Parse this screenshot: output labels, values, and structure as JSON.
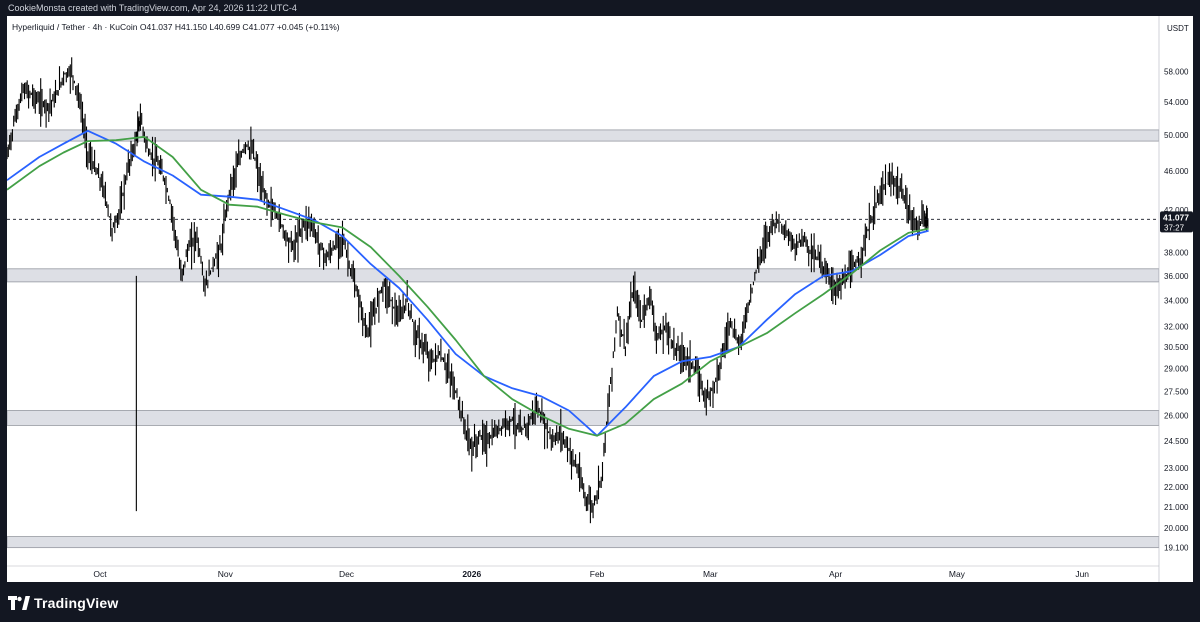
{
  "header": {
    "credit": "CookieMonsta created with TradingView.com, Apr 24, 2026 11:22 UTC-4",
    "ohlc": "Hyperliquid / Tether · 4h · KuCoin  O41.037  H41.150  L40.699  C41.077  +0.045 (+0.11%)",
    "unit": "USDT"
  },
  "price_tag": {
    "price": "41.077",
    "countdown": "37:27"
  },
  "brand": {
    "name": "TradingView",
    "icon": "tradingview-logo-icon"
  },
  "colors": {
    "ma_fast": "#2962ff",
    "ma_slow": "#43a047",
    "zone": "#d1d4dc",
    "candle": "#000000"
  },
  "chart_data": {
    "type": "line",
    "title": "",
    "symbol": "Hyperliquid / Tether",
    "interval": "4h",
    "exchange": "KuCoin",
    "ohlc": {
      "open": 41.037,
      "high": 41.15,
      "low": 40.699,
      "close": 41.077,
      "change": 0.045,
      "change_pct": 0.11
    },
    "y_scale": "log",
    "ylim": [
      18.3,
      66.0
    ],
    "y_ticks": [
      "58.000",
      "54.000",
      "50.000",
      "46.000",
      "42.000",
      "38.000",
      "36.000",
      "34.000",
      "32.000",
      "30.500",
      "29.000",
      "27.500",
      "26.000",
      "24.500",
      "23.000",
      "22.000",
      "21.000",
      "20.000",
      "19.100"
    ],
    "x_ticks": [
      "Oct",
      "Nov",
      "Dec",
      "2026",
      "Feb",
      "Mar",
      "Apr",
      "May",
      "Jun"
    ],
    "xlim": [
      "2025-09-08",
      "2026-06-20"
    ],
    "last_price": 41.077,
    "zones": [
      {
        "low": 49.3,
        "high": 50.6
      },
      {
        "low": 35.5,
        "high": 36.6
      },
      {
        "low": 25.4,
        "high": 26.3
      },
      {
        "low": 19.1,
        "high": 19.6
      }
    ],
    "series": [
      {
        "style": "candles",
        "points": [
          [
            "2025-09-08",
            47.5
          ],
          [
            "2025-09-10",
            52.0
          ],
          [
            "2025-09-12",
            55.5
          ],
          [
            "2025-09-14",
            55.0
          ],
          [
            "2025-09-16",
            54.0
          ],
          [
            "2025-09-18",
            53.5
          ],
          [
            "2025-09-20",
            54.5
          ],
          [
            "2025-09-22",
            57.5
          ],
          [
            "2025-09-24",
            58.0
          ],
          [
            "2025-09-26",
            54.0
          ],
          [
            "2025-09-28",
            48.0
          ],
          [
            "2025-09-30",
            46.0
          ],
          [
            "2025-10-02",
            44.0
          ],
          [
            "2025-10-04",
            40.0
          ],
          [
            "2025-10-06",
            42.0
          ],
          [
            "2025-10-08",
            46.5
          ],
          [
            "2025-10-10",
            49.5
          ],
          [
            "2025-10-11",
            52.0
          ],
          [
            "2025-10-13",
            48.0
          ],
          [
            "2025-10-15",
            47.0
          ],
          [
            "2025-10-17",
            45.0
          ],
          [
            "2025-10-19",
            41.5
          ],
          [
            "2025-10-21",
            36.0
          ],
          [
            "2025-10-23",
            38.5
          ],
          [
            "2025-10-25",
            39.5
          ],
          [
            "2025-10-27",
            35.0
          ],
          [
            "2025-10-29",
            37.0
          ],
          [
            "2025-10-31",
            38.5
          ],
          [
            "2025-11-02",
            44.0
          ],
          [
            "2025-11-04",
            46.5
          ],
          [
            "2025-11-06",
            49.0
          ],
          [
            "2025-11-08",
            48.0
          ],
          [
            "2025-11-10",
            44.0
          ],
          [
            "2025-11-12",
            42.5
          ],
          [
            "2025-11-14",
            41.5
          ],
          [
            "2025-11-16",
            39.5
          ],
          [
            "2025-11-18",
            38.5
          ],
          [
            "2025-11-20",
            40.5
          ],
          [
            "2025-11-22",
            41.0
          ],
          [
            "2025-11-24",
            39.0
          ],
          [
            "2025-11-26",
            37.5
          ],
          [
            "2025-11-28",
            38.5
          ],
          [
            "2025-11-30",
            39.5
          ],
          [
            "2025-12-02",
            36.5
          ],
          [
            "2025-12-04",
            34.0
          ],
          [
            "2025-12-06",
            31.5
          ],
          [
            "2025-12-08",
            33.0
          ],
          [
            "2025-12-10",
            35.5
          ],
          [
            "2025-12-12",
            34.0
          ],
          [
            "2025-12-14",
            32.5
          ],
          [
            "2025-12-16",
            34.0
          ],
          [
            "2025-12-18",
            31.5
          ],
          [
            "2025-12-20",
            30.5
          ],
          [
            "2025-12-22",
            29.5
          ],
          [
            "2025-12-24",
            30.0
          ],
          [
            "2025-12-26",
            29.0
          ],
          [
            "2025-12-28",
            27.5
          ],
          [
            "2025-12-30",
            25.5
          ],
          [
            "2026-01-01",
            24.0
          ],
          [
            "2026-01-03",
            24.8
          ],
          [
            "2026-01-05",
            24.5
          ],
          [
            "2026-01-07",
            25.0
          ],
          [
            "2026-01-09",
            25.5
          ],
          [
            "2026-01-11",
            25.8
          ],
          [
            "2026-01-13",
            25.0
          ],
          [
            "2026-01-15",
            25.5
          ],
          [
            "2026-01-17",
            26.5
          ],
          [
            "2026-01-19",
            25.5
          ],
          [
            "2026-01-21",
            24.5
          ],
          [
            "2026-01-23",
            25.0
          ],
          [
            "2026-01-25",
            24.0
          ],
          [
            "2026-01-27",
            23.0
          ],
          [
            "2026-01-29",
            21.5
          ],
          [
            "2026-01-31",
            21.0
          ],
          [
            "2026-02-02",
            22.5
          ],
          [
            "2026-02-04",
            27.0
          ],
          [
            "2026-02-06",
            33.0
          ],
          [
            "2026-02-08",
            30.5
          ],
          [
            "2026-02-10",
            35.0
          ],
          [
            "2026-02-12",
            32.5
          ],
          [
            "2026-02-14",
            34.5
          ],
          [
            "2026-02-16",
            31.0
          ],
          [
            "2026-02-18",
            32.0
          ],
          [
            "2026-02-20",
            30.5
          ],
          [
            "2026-02-22",
            30.0
          ],
          [
            "2026-02-24",
            29.5
          ],
          [
            "2026-02-26",
            28.5
          ],
          [
            "2026-02-28",
            27.0
          ],
          [
            "2026-03-02",
            28.0
          ],
          [
            "2026-03-04",
            30.0
          ],
          [
            "2026-03-06",
            32.5
          ],
          [
            "2026-03-08",
            30.5
          ],
          [
            "2026-03-10",
            33.0
          ],
          [
            "2026-03-12",
            36.0
          ],
          [
            "2026-03-14",
            38.5
          ],
          [
            "2026-03-16",
            40.5
          ],
          [
            "2026-03-18",
            41.0
          ],
          [
            "2026-03-20",
            39.5
          ],
          [
            "2026-03-22",
            38.5
          ],
          [
            "2026-03-24",
            39.5
          ],
          [
            "2026-03-26",
            38.0
          ],
          [
            "2026-03-28",
            37.5
          ],
          [
            "2026-03-30",
            36.0
          ],
          [
            "2026-04-01",
            35.0
          ],
          [
            "2026-04-03",
            35.5
          ],
          [
            "2026-04-05",
            36.5
          ],
          [
            "2026-04-07",
            37.5
          ],
          [
            "2026-04-09",
            40.0
          ],
          [
            "2026-04-11",
            42.5
          ],
          [
            "2026-04-13",
            44.5
          ],
          [
            "2026-04-15",
            45.0
          ],
          [
            "2026-04-17",
            44.0
          ],
          [
            "2026-04-19",
            42.0
          ],
          [
            "2026-04-21",
            40.5
          ],
          [
            "2026-04-23",
            41.0
          ],
          [
            "2026-04-24",
            41.077
          ]
        ]
      },
      {
        "style": "moving-average-blue",
        "points": [
          [
            "2025-09-08",
            45.0
          ],
          [
            "2025-09-16",
            47.5
          ],
          [
            "2025-09-22",
            49.0
          ],
          [
            "2025-09-28",
            50.5
          ],
          [
            "2025-10-05",
            49.0
          ],
          [
            "2025-10-12",
            47.0
          ],
          [
            "2025-10-19",
            45.5
          ],
          [
            "2025-10-26",
            43.5
          ],
          [
            "2025-11-02",
            43.3
          ],
          [
            "2025-11-09",
            43.0
          ],
          [
            "2025-11-16",
            42.0
          ],
          [
            "2025-11-23",
            41.0
          ],
          [
            "2025-11-30",
            39.5
          ],
          [
            "2025-12-07",
            37.0
          ],
          [
            "2025-12-14",
            35.0
          ],
          [
            "2025-12-21",
            32.5
          ],
          [
            "2025-12-28",
            30.0
          ],
          [
            "2026-01-04",
            28.5
          ],
          [
            "2026-01-11",
            27.7
          ],
          [
            "2026-01-18",
            27.2
          ],
          [
            "2026-01-25",
            26.3
          ],
          [
            "2026-02-01",
            24.8
          ],
          [
            "2026-02-08",
            26.5
          ],
          [
            "2026-02-15",
            28.5
          ],
          [
            "2026-02-22",
            29.5
          ],
          [
            "2026-03-01",
            29.8
          ],
          [
            "2026-03-08",
            30.5
          ],
          [
            "2026-03-15",
            32.5
          ],
          [
            "2026-03-22",
            34.5
          ],
          [
            "2026-03-29",
            36.0
          ],
          [
            "2026-04-05",
            36.4
          ],
          [
            "2026-04-12",
            37.8
          ],
          [
            "2026-04-19",
            39.5
          ],
          [
            "2026-04-24",
            40.0
          ]
        ]
      },
      {
        "style": "moving-average-green",
        "points": [
          [
            "2025-09-08",
            44.0
          ],
          [
            "2025-09-16",
            46.5
          ],
          [
            "2025-09-22",
            48.0
          ],
          [
            "2025-09-28",
            49.3
          ],
          [
            "2025-10-05",
            49.4
          ],
          [
            "2025-10-12",
            49.8
          ],
          [
            "2025-10-19",
            47.5
          ],
          [
            "2025-10-26",
            44.0
          ],
          [
            "2025-11-02",
            42.5
          ],
          [
            "2025-11-09",
            42.3
          ],
          [
            "2025-11-16",
            41.5
          ],
          [
            "2025-11-23",
            40.8
          ],
          [
            "2025-11-30",
            40.3
          ],
          [
            "2025-12-07",
            38.5
          ],
          [
            "2025-12-14",
            36.0
          ],
          [
            "2025-12-21",
            33.5
          ],
          [
            "2025-12-28",
            31.0
          ],
          [
            "2026-01-04",
            28.5
          ],
          [
            "2026-01-11",
            27.0
          ],
          [
            "2026-01-18",
            26.0
          ],
          [
            "2026-01-25",
            25.2
          ],
          [
            "2026-02-01",
            24.8
          ],
          [
            "2026-02-08",
            25.5
          ],
          [
            "2026-02-15",
            27.0
          ],
          [
            "2026-02-22",
            28.0
          ],
          [
            "2026-03-01",
            29.5
          ],
          [
            "2026-03-08",
            30.5
          ],
          [
            "2026-03-15",
            31.5
          ],
          [
            "2026-03-22",
            33.0
          ],
          [
            "2026-03-29",
            34.5
          ],
          [
            "2026-04-05",
            36.2
          ],
          [
            "2026-04-12",
            38.2
          ],
          [
            "2026-04-19",
            39.8
          ],
          [
            "2026-04-24",
            40.2
          ]
        ]
      }
    ]
  }
}
